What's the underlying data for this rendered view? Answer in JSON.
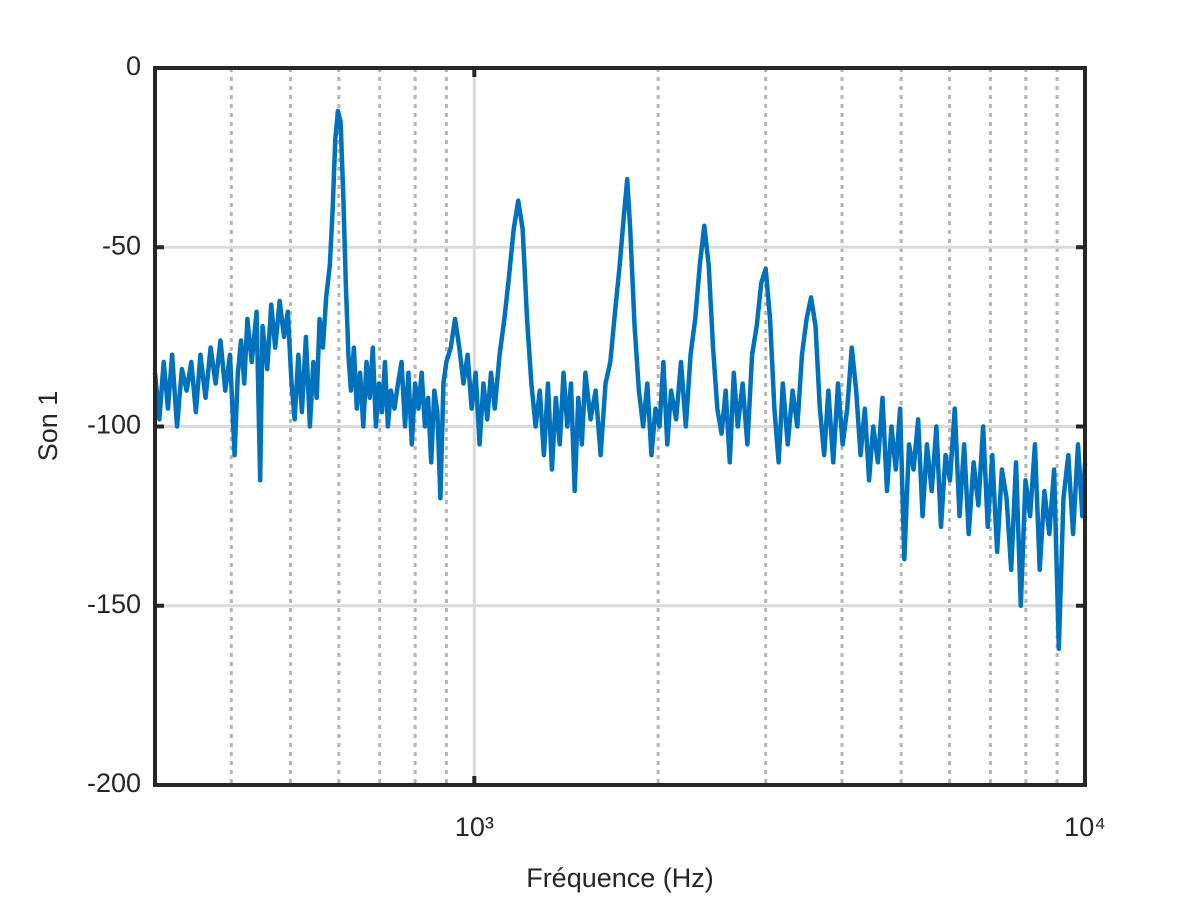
{
  "chart_data": {
    "type": "line",
    "xlabel": "Fréquence (Hz)",
    "ylabel": "Son 1",
    "color": "#0072bd",
    "xscale": "log",
    "grid": true,
    "minor_grid": true,
    "xlim": [
      300,
      10000
    ],
    "ylim": [
      -200,
      0
    ],
    "xticks": [
      {
        "value": 1000,
        "label": "10³"
      },
      {
        "value": 10000,
        "label": "10⁴"
      }
    ],
    "xminorticks": [
      400,
      500,
      600,
      700,
      800,
      900,
      2000,
      3000,
      4000,
      5000,
      6000,
      7000,
      8000,
      9000
    ],
    "yticks": [
      -200,
      -150,
      -100,
      -50,
      0
    ],
    "x": [
      300,
      305,
      310,
      315,
      320,
      326,
      332,
      338,
      344,
      350,
      356,
      363,
      370,
      377,
      384,
      391,
      398,
      405,
      410,
      415,
      420,
      425,
      432,
      440,
      446,
      450,
      458,
      465,
      472,
      480,
      488,
      495,
      502,
      508,
      515,
      522,
      530,
      538,
      545,
      552,
      558,
      565,
      572,
      580,
      586,
      592,
      598,
      604,
      610,
      616,
      622,
      628,
      635,
      642,
      650,
      658,
      666,
      674,
      682,
      690,
      698,
      706,
      714,
      722,
      730,
      740,
      750,
      760,
      770,
      780,
      790,
      800,
      810,
      820,
      830,
      840,
      850,
      860,
      870,
      880,
      890,
      900,
      915,
      930,
      945,
      960,
      975,
      990,
      1005,
      1020,
      1035,
      1050,
      1065,
      1080,
      1100,
      1120,
      1140,
      1160,
      1180,
      1200,
      1220,
      1240,
      1260,
      1280,
      1300,
      1320,
      1340,
      1360,
      1380,
      1400,
      1420,
      1440,
      1460,
      1480,
      1500,
      1520,
      1550,
      1580,
      1610,
      1640,
      1670,
      1700,
      1730,
      1760,
      1780,
      1800,
      1830,
      1860,
      1890,
      1920,
      1950,
      1980,
      2010,
      2040,
      2070,
      2100,
      2140,
      2180,
      2220,
      2260,
      2300,
      2340,
      2380,
      2420,
      2460,
      2500,
      2540,
      2580,
      2620,
      2660,
      2700,
      2750,
      2800,
      2850,
      2900,
      2950,
      3000,
      3050,
      3100,
      3150,
      3200,
      3260,
      3320,
      3380,
      3440,
      3500,
      3560,
      3620,
      3680,
      3740,
      3800,
      3870,
      3940,
      4010,
      4080,
      4150,
      4220,
      4290,
      4360,
      4430,
      4500,
      4580,
      4660,
      4740,
      4820,
      4900,
      4980,
      5060,
      5150,
      5240,
      5330,
      5420,
      5510,
      5610,
      5710,
      5810,
      5910,
      6010,
      6120,
      6230,
      6340,
      6450,
      6570,
      6690,
      6810,
      6930,
      7050,
      7180,
      7310,
      7440,
      7570,
      7710,
      7850,
      7990,
      8130,
      8280,
      8430,
      8580,
      8740,
      8900,
      9060,
      9220,
      9390,
      9560,
      9740,
      9900,
      10000
    ],
    "values": [
      -85,
      -98,
      -82,
      -95,
      -80,
      -100,
      -84,
      -90,
      -82,
      -96,
      -80,
      -92,
      -78,
      -88,
      -76,
      -90,
      -80,
      -108,
      -85,
      -76,
      -88,
      -70,
      -82,
      -68,
      -115,
      -72,
      -84,
      -66,
      -78,
      -65,
      -75,
      -68,
      -88,
      -98,
      -80,
      -96,
      -75,
      -100,
      -82,
      -92,
      -70,
      -78,
      -64,
      -55,
      -40,
      -20,
      -12,
      -15,
      -35,
      -60,
      -80,
      -90,
      -78,
      -95,
      -85,
      -100,
      -82,
      -92,
      -78,
      -100,
      -88,
      -96,
      -82,
      -100,
      -90,
      -95,
      -88,
      -82,
      -100,
      -85,
      -105,
      -88,
      -95,
      -85,
      -100,
      -92,
      -110,
      -90,
      -96,
      -120,
      -88,
      -82,
      -78,
      -70,
      -78,
      -88,
      -80,
      -95,
      -85,
      -105,
      -88,
      -98,
      -85,
      -95,
      -80,
      -70,
      -58,
      -45,
      -37,
      -45,
      -70,
      -88,
      -100,
      -90,
      -108,
      -88,
      -112,
      -92,
      -105,
      -85,
      -100,
      -88,
      -118,
      -92,
      -105,
      -85,
      -98,
      -90,
      -108,
      -88,
      -82,
      -68,
      -55,
      -40,
      -31,
      -45,
      -72,
      -90,
      -100,
      -88,
      -108,
      -95,
      -100,
      -82,
      -105,
      -90,
      -98,
      -82,
      -100,
      -80,
      -70,
      -55,
      -44,
      -55,
      -78,
      -95,
      -102,
      -90,
      -110,
      -85,
      -100,
      -88,
      -105,
      -80,
      -72,
      -60,
      -56,
      -70,
      -95,
      -110,
      -88,
      -105,
      -90,
      -100,
      -80,
      -70,
      -64,
      -72,
      -95,
      -108,
      -90,
      -110,
      -88,
      -105,
      -95,
      -78,
      -90,
      -108,
      -95,
      -115,
      -100,
      -110,
      -92,
      -118,
      -100,
      -112,
      -95,
      -137,
      -105,
      -112,
      -98,
      -125,
      -105,
      -118,
      -100,
      -128,
      -108,
      -115,
      -95,
      -125,
      -105,
      -130,
      -110,
      -122,
      -100,
      -128,
      -108,
      -135,
      -112,
      -120,
      -140,
      -110,
      -150,
      -115,
      -125,
      -105,
      -140,
      -118,
      -130,
      -112,
      -162,
      -120,
      -108,
      -130,
      -105,
      -125,
      -110
    ]
  }
}
